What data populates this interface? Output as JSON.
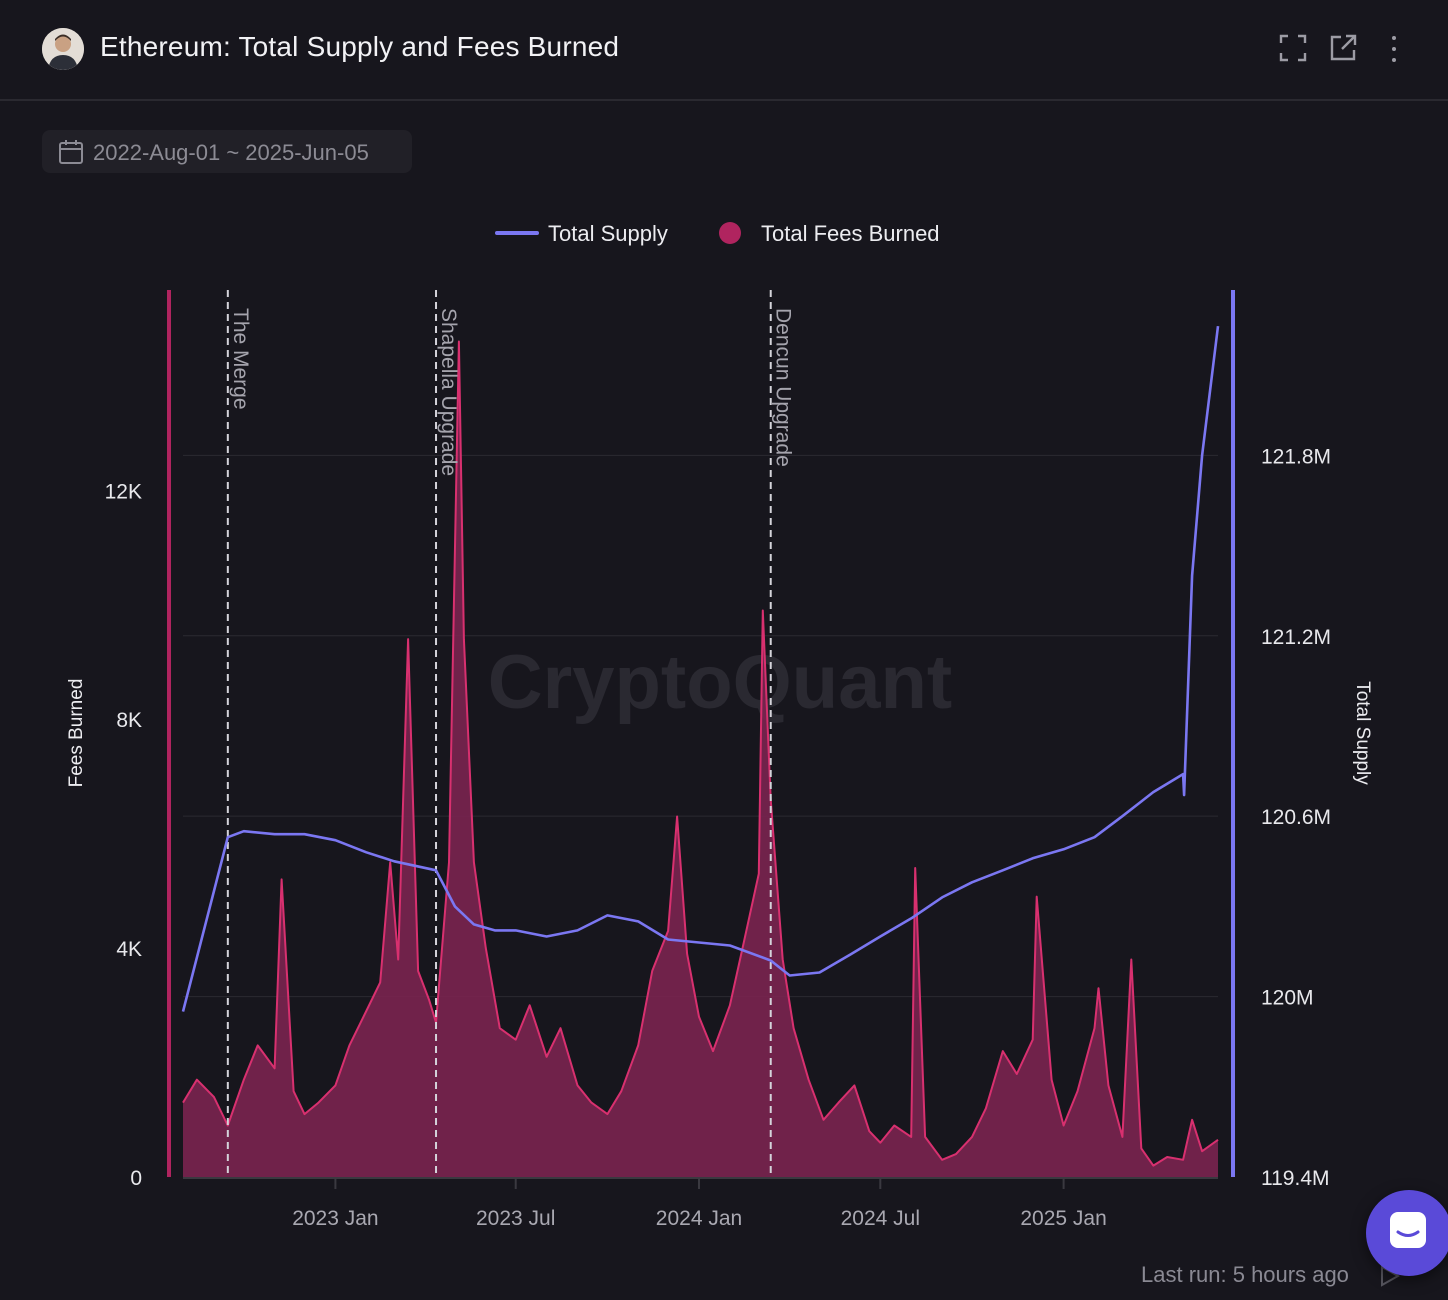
{
  "header": {
    "title": "Ethereum: Total Supply and Fees Burned",
    "icons": [
      "fullscreen-icon",
      "external-link-icon",
      "more-vertical-icon"
    ]
  },
  "date_range": {
    "label": "2022-Aug-01 ~ 2025-Jun-05",
    "icon": "calendar-icon"
  },
  "watermark": "CryptoQuant",
  "footer": {
    "last_run": "Last run: 5 hours ago"
  },
  "colors": {
    "supply": "#7b77f2",
    "fees": "#b0245f",
    "fees_line": "#d8306f",
    "fees_fill": "#7a2450",
    "background": "#17161d",
    "grid": "#2b2a31"
  },
  "chart_data": {
    "type": "line",
    "title": "Ethereum: Total Supply and Fees Burned",
    "x_range": [
      "2022-08-01",
      "2025-06-05"
    ],
    "x_ticks": [
      {
        "date": "2023-01-01",
        "label": "2023 Jan"
      },
      {
        "date": "2023-07-01",
        "label": "2023 Jul"
      },
      {
        "date": "2024-01-01",
        "label": "2024 Jan"
      },
      {
        "date": "2024-07-01",
        "label": "2024 Jul"
      },
      {
        "date": "2025-01-01",
        "label": "2025 Jan"
      }
    ],
    "y_left": {
      "label": "Fees Burned",
      "range": [
        0,
        15500
      ],
      "ticks": [
        {
          "v": 0,
          "label": "0"
        },
        {
          "v": 4000,
          "label": "4K"
        },
        {
          "v": 8000,
          "label": "8K"
        },
        {
          "v": 12000,
          "label": "12K"
        }
      ]
    },
    "y_right": {
      "label": "Total Supply",
      "range": [
        119400000,
        122350000
      ],
      "ticks": [
        {
          "v": 119400000,
          "label": "119.4M"
        },
        {
          "v": 120000000,
          "label": "120M"
        },
        {
          "v": 120600000,
          "label": "120.6M"
        },
        {
          "v": 121200000,
          "label": "121.2M"
        },
        {
          "v": 121800000,
          "label": "121.8M"
        }
      ]
    },
    "events": [
      {
        "date": "2022-09-15",
        "label": "The Merge"
      },
      {
        "date": "2023-04-12",
        "label": "Shapella Upgrade"
      },
      {
        "date": "2024-03-13",
        "label": "Dencun Upgrade"
      }
    ],
    "legend": [
      {
        "name": "Total Supply",
        "style": "line"
      },
      {
        "name": "Total Fees Burned",
        "style": "dot"
      }
    ],
    "series": [
      {
        "name": "Total Supply",
        "axis": "right",
        "points": [
          [
            "2022-08-01",
            119950000
          ],
          [
            "2022-09-15",
            120530000
          ],
          [
            "2022-10-01",
            120550000
          ],
          [
            "2022-11-01",
            120540000
          ],
          [
            "2022-12-01",
            120540000
          ],
          [
            "2023-01-01",
            120520000
          ],
          [
            "2023-02-01",
            120480000
          ],
          [
            "2023-03-01",
            120450000
          ],
          [
            "2023-04-12",
            120420000
          ],
          [
            "2023-05-01",
            120300000
          ],
          [
            "2023-05-20",
            120240000
          ],
          [
            "2023-06-10",
            120220000
          ],
          [
            "2023-07-01",
            120220000
          ],
          [
            "2023-08-01",
            120200000
          ],
          [
            "2023-09-01",
            120220000
          ],
          [
            "2023-10-01",
            120270000
          ],
          [
            "2023-11-01",
            120250000
          ],
          [
            "2023-12-01",
            120190000
          ],
          [
            "2024-01-01",
            120180000
          ],
          [
            "2024-02-01",
            120170000
          ],
          [
            "2024-03-13",
            120120000
          ],
          [
            "2024-04-01",
            120070000
          ],
          [
            "2024-05-01",
            120080000
          ],
          [
            "2024-06-01",
            120140000
          ],
          [
            "2024-07-01",
            120200000
          ],
          [
            "2024-08-01",
            120260000
          ],
          [
            "2024-09-01",
            120330000
          ],
          [
            "2024-10-01",
            120380000
          ],
          [
            "2024-11-01",
            120420000
          ],
          [
            "2024-12-01",
            120460000
          ],
          [
            "2025-01-01",
            120490000
          ],
          [
            "2025-02-01",
            120530000
          ],
          [
            "2025-03-01",
            120600000
          ],
          [
            "2025-04-01",
            120680000
          ],
          [
            "2025-05-01",
            120740000
          ],
          [
            "2025-05-02",
            120670000
          ],
          [
            "2025-05-10",
            121400000
          ],
          [
            "2025-05-20",
            121800000
          ],
          [
            "2025-06-05",
            122230000
          ]
        ]
      },
      {
        "name": "Total Fees Burned",
        "axis": "left",
        "points": [
          [
            "2022-08-01",
            1300
          ],
          [
            "2022-08-15",
            1700
          ],
          [
            "2022-09-01",
            1400
          ],
          [
            "2022-09-15",
            900
          ],
          [
            "2022-10-01",
            1700
          ],
          [
            "2022-10-15",
            2300
          ],
          [
            "2022-11-01",
            1900
          ],
          [
            "2022-11-08",
            5200
          ],
          [
            "2022-11-20",
            1500
          ],
          [
            "2022-12-01",
            1100
          ],
          [
            "2022-12-15",
            1300
          ],
          [
            "2023-01-01",
            1600
          ],
          [
            "2023-01-15",
            2300
          ],
          [
            "2023-02-01",
            2900
          ],
          [
            "2023-02-15",
            3400
          ],
          [
            "2023-02-25",
            5500
          ],
          [
            "2023-03-05",
            3800
          ],
          [
            "2023-03-15",
            9400
          ],
          [
            "2023-03-25",
            3600
          ],
          [
            "2023-04-05",
            3100
          ],
          [
            "2023-04-12",
            2700
          ],
          [
            "2023-04-25",
            5500
          ],
          [
            "2023-05-05",
            14600
          ],
          [
            "2023-05-10",
            9400
          ],
          [
            "2023-05-20",
            5500
          ],
          [
            "2023-06-01",
            4000
          ],
          [
            "2023-06-15",
            2600
          ],
          [
            "2023-07-01",
            2400
          ],
          [
            "2023-07-15",
            3000
          ],
          [
            "2023-08-01",
            2100
          ],
          [
            "2023-08-15",
            2600
          ],
          [
            "2023-09-01",
            1600
          ],
          [
            "2023-09-15",
            1300
          ],
          [
            "2023-10-01",
            1100
          ],
          [
            "2023-10-15",
            1500
          ],
          [
            "2023-11-01",
            2300
          ],
          [
            "2023-11-15",
            3600
          ],
          [
            "2023-12-01",
            4300
          ],
          [
            "2023-12-10",
            6300
          ],
          [
            "2023-12-20",
            3900
          ],
          [
            "2024-01-01",
            2800
          ],
          [
            "2024-01-15",
            2200
          ],
          [
            "2024-02-01",
            3000
          ],
          [
            "2024-02-15",
            4100
          ],
          [
            "2024-03-01",
            5300
          ],
          [
            "2024-03-05",
            9900
          ],
          [
            "2024-03-13",
            6600
          ],
          [
            "2024-03-25",
            3800
          ],
          [
            "2024-04-05",
            2600
          ],
          [
            "2024-04-20",
            1700
          ],
          [
            "2024-05-05",
            1000
          ],
          [
            "2024-05-20",
            1300
          ],
          [
            "2024-06-05",
            1600
          ],
          [
            "2024-06-20",
            800
          ],
          [
            "2024-07-01",
            600
          ],
          [
            "2024-07-15",
            900
          ],
          [
            "2024-08-01",
            700
          ],
          [
            "2024-08-05",
            5400
          ],
          [
            "2024-08-15",
            700
          ],
          [
            "2024-09-01",
            300
          ],
          [
            "2024-09-15",
            400
          ],
          [
            "2024-10-01",
            700
          ],
          [
            "2024-10-15",
            1200
          ],
          [
            "2024-11-01",
            2200
          ],
          [
            "2024-11-15",
            1800
          ],
          [
            "2024-12-01",
            2400
          ],
          [
            "2024-12-05",
            4900
          ],
          [
            "2024-12-20",
            1700
          ],
          [
            "2025-01-01",
            900
          ],
          [
            "2025-01-15",
            1500
          ],
          [
            "2025-02-01",
            2600
          ],
          [
            "2025-02-05",
            3300
          ],
          [
            "2025-02-15",
            1600
          ],
          [
            "2025-03-01",
            700
          ],
          [
            "2025-03-10",
            3800
          ],
          [
            "2025-03-20",
            500
          ],
          [
            "2025-04-01",
            200
          ],
          [
            "2025-04-15",
            350
          ],
          [
            "2025-05-01",
            300
          ],
          [
            "2025-05-10",
            1000
          ],
          [
            "2025-05-20",
            450
          ],
          [
            "2025-06-05",
            650
          ]
        ]
      }
    ]
  }
}
